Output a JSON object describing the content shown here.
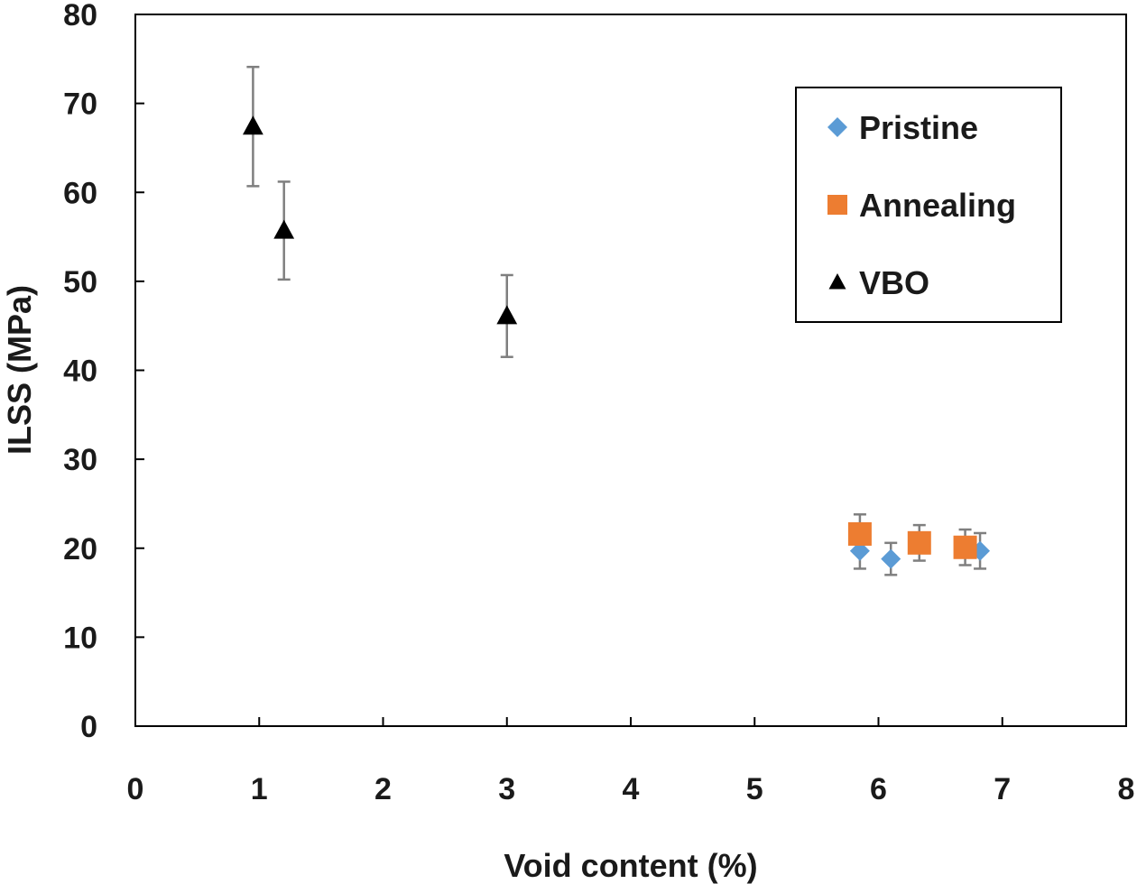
{
  "chart_data": {
    "type": "scatter",
    "title": "",
    "xlabel": "Void content (%)",
    "ylabel": "ILSS (MPa)",
    "xlim": [
      0,
      8
    ],
    "ylim": [
      0,
      80
    ],
    "xticks": [
      "0",
      "1",
      "2",
      "3",
      "4",
      "5",
      "6",
      "7",
      "8"
    ],
    "yticks": [
      "0",
      "10",
      "20",
      "30",
      "40",
      "50",
      "60",
      "70",
      "80"
    ],
    "grid": false,
    "legend_position": "top-right",
    "series": [
      {
        "name": "Pristine",
        "marker": "diamond",
        "color": "#5b9bd5",
        "points": [
          {
            "x": 5.85,
            "y": 19.7,
            "err": 2.0
          },
          {
            "x": 6.1,
            "y": 18.8,
            "err": 1.8
          },
          {
            "x": 6.82,
            "y": 19.7,
            "err": 2.0
          }
        ]
      },
      {
        "name": "Annealing",
        "marker": "square",
        "color": "#ed7d31",
        "points": [
          {
            "x": 5.85,
            "y": 21.6,
            "err": 2.2
          },
          {
            "x": 6.33,
            "y": 20.6,
            "err": 2.0
          },
          {
            "x": 6.7,
            "y": 20.1,
            "err": 2.0
          }
        ]
      },
      {
        "name": "VBO",
        "marker": "triangle",
        "color": "#000000",
        "points": [
          {
            "x": 0.95,
            "y": 67.4,
            "err": 6.7
          },
          {
            "x": 1.2,
            "y": 55.7,
            "err": 5.5
          },
          {
            "x": 3.0,
            "y": 46.1,
            "err": 4.6
          }
        ]
      }
    ]
  }
}
